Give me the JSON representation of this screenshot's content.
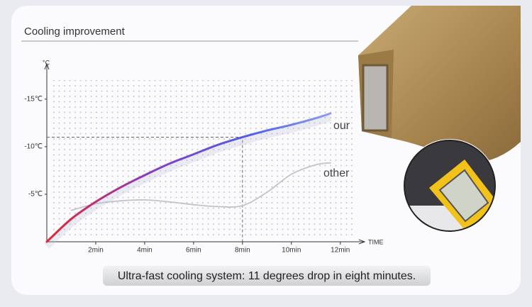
{
  "chart_data": {
    "type": "line",
    "title": "Cooling improvement",
    "caption": "Ultra-fast cooling system: 11 degrees drop in eight minutes.",
    "y_label": "°C",
    "x_label": "TIME",
    "x": [
      0,
      1,
      2,
      3,
      4,
      5,
      6,
      7,
      8,
      9,
      10,
      11,
      11.6
    ],
    "series": [
      {
        "name": "our",
        "color": "#4f5fe8",
        "gradient": [
          "#e8262b",
          "#8a3cc0",
          "#4f5fe8",
          "#9fb0f2"
        ],
        "values": [
          0,
          -2.4,
          -4.2,
          -5.7,
          -7,
          -8.2,
          -9.2,
          -10.2,
          -11,
          -11.7,
          -12.3,
          -13,
          -13.5
        ]
      },
      {
        "name": "other",
        "color": "#c4c4c8",
        "values": [
          null,
          -3.3,
          -4.0,
          -4.3,
          -4.4,
          -4.2,
          -3.9,
          -3.7,
          -3.8,
          -5.2,
          -7.1,
          -8.1,
          -8.3
        ]
      }
    ],
    "highlight": {
      "x": 8,
      "y": -11
    },
    "xlim": [
      0,
      12.5
    ],
    "ylim": [
      0,
      -17
    ],
    "xticks": [
      {
        "value": 2,
        "label": "2min"
      },
      {
        "value": 4,
        "label": "4min"
      },
      {
        "value": 6,
        "label": "6min"
      },
      {
        "value": 8,
        "label": "8min"
      },
      {
        "value": 10,
        "label": "10min"
      },
      {
        "value": 12,
        "label": "12min"
      }
    ],
    "yticks": [
      {
        "value": -5,
        "label": "-5℃"
      },
      {
        "value": -10,
        "label": "-10℃"
      },
      {
        "value": -15,
        "label": "-15℃"
      }
    ],
    "grid": true
  }
}
